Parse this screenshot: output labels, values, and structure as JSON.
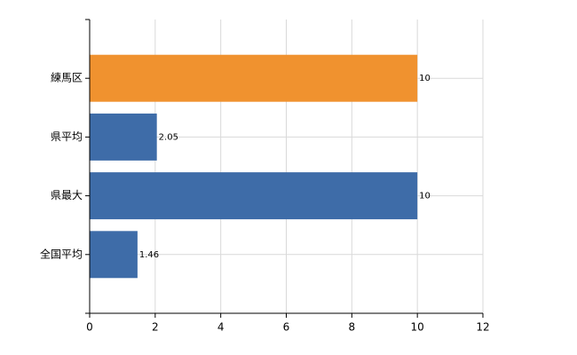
{
  "chart_data": {
    "type": "bar",
    "orientation": "horizontal",
    "categories": [
      "練馬区",
      "県平均",
      "県最大",
      "全国平均"
    ],
    "values": [
      10,
      2.05,
      10,
      1.46
    ],
    "colors": [
      "#f0922f",
      "#3e6ca8",
      "#3e6ca8",
      "#3e6ca8"
    ],
    "xlim": [
      0,
      12
    ],
    "xticks": [
      0,
      2,
      4,
      6,
      8,
      10,
      12
    ],
    "grid": true
  }
}
